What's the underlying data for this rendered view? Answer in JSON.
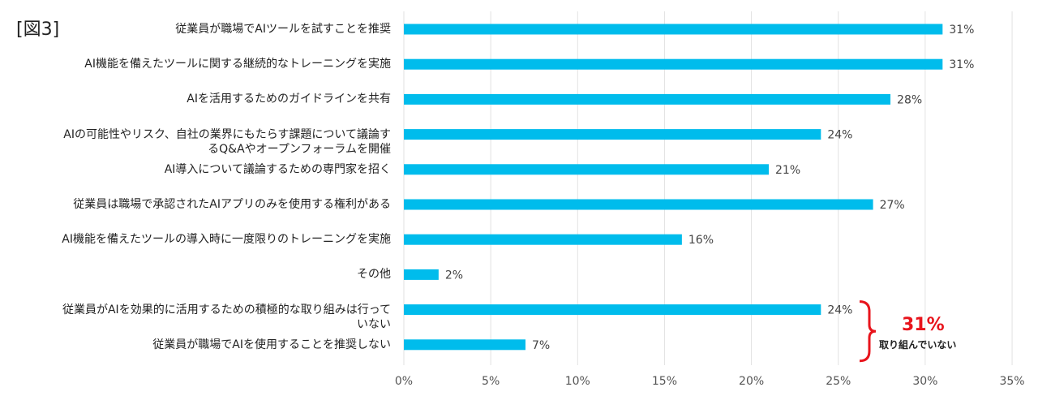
{
  "figure_label": "[図3]",
  "chart_data": {
    "type": "bar",
    "orientation": "horizontal",
    "categories": [
      "従業員が職場でAIツールを試すことを推奨",
      "AI機能を備えたツールに関する継続的なトレーニングを実施",
      "AIを活用するためのガイドラインを共有",
      "AIの可能性やリスク、自社の業界にもたらす課題について議論するQ&Aやオープンフォーラムを開催",
      "AI導入について議論するための専門家を招く",
      "従業員は職場で承認されたAIアプリのみを使用する権利がある",
      "AI機能を備えたツールの導入時に一度限りのトレーニングを実施",
      "その他",
      "従業員がAIを効果的に活用するための積極的な取り組みは行っていない",
      "従業員が職場でAIを使用することを推奨しない"
    ],
    "category_lines": [
      [
        "従業員が職場でAIツールを試すことを推奨"
      ],
      [
        "AI機能を備えたツールに関する継続的なトレーニングを実施"
      ],
      [
        "AIを活用するためのガイドラインを共有"
      ],
      [
        "AIの可能性やリスク、自社の業界にもたらす課題について議論す",
        "るQ&Aやオープンフォーラムを開催"
      ],
      [
        "AI導入について議論するための専門家を招く"
      ],
      [
        "従業員は職場で承認されたAIアプリのみを使用する権利がある"
      ],
      [
        "AI機能を備えたツールの導入時に一度限りのトレーニングを実施"
      ],
      [
        "その他"
      ],
      [
        "従業員がAIを効果的に活用するための積極的な取り組みは行って",
        "いない"
      ],
      [
        "従業員が職場でAIを使用することを推奨しない"
      ]
    ],
    "values": [
      31,
      31,
      28,
      24,
      21,
      27,
      16,
      2,
      24,
      7
    ],
    "value_labels": [
      "31%",
      "31%",
      "28%",
      "24%",
      "21%",
      "27%",
      "16%",
      "2%",
      "24%",
      "7%"
    ],
    "xlim": [
      0,
      35
    ],
    "xticks": [
      0,
      5,
      10,
      15,
      20,
      25,
      30,
      35
    ],
    "xtick_labels": [
      "0%",
      "5%",
      "10%",
      "15%",
      "20%",
      "25%",
      "30%",
      "35%"
    ],
    "grid": true,
    "bar_color": "#00bcec",
    "annotation": {
      "value": "31%",
      "caption": "取り組んでいない",
      "color": "#e8141c",
      "bracket_categories": [
        8,
        9
      ]
    }
  }
}
